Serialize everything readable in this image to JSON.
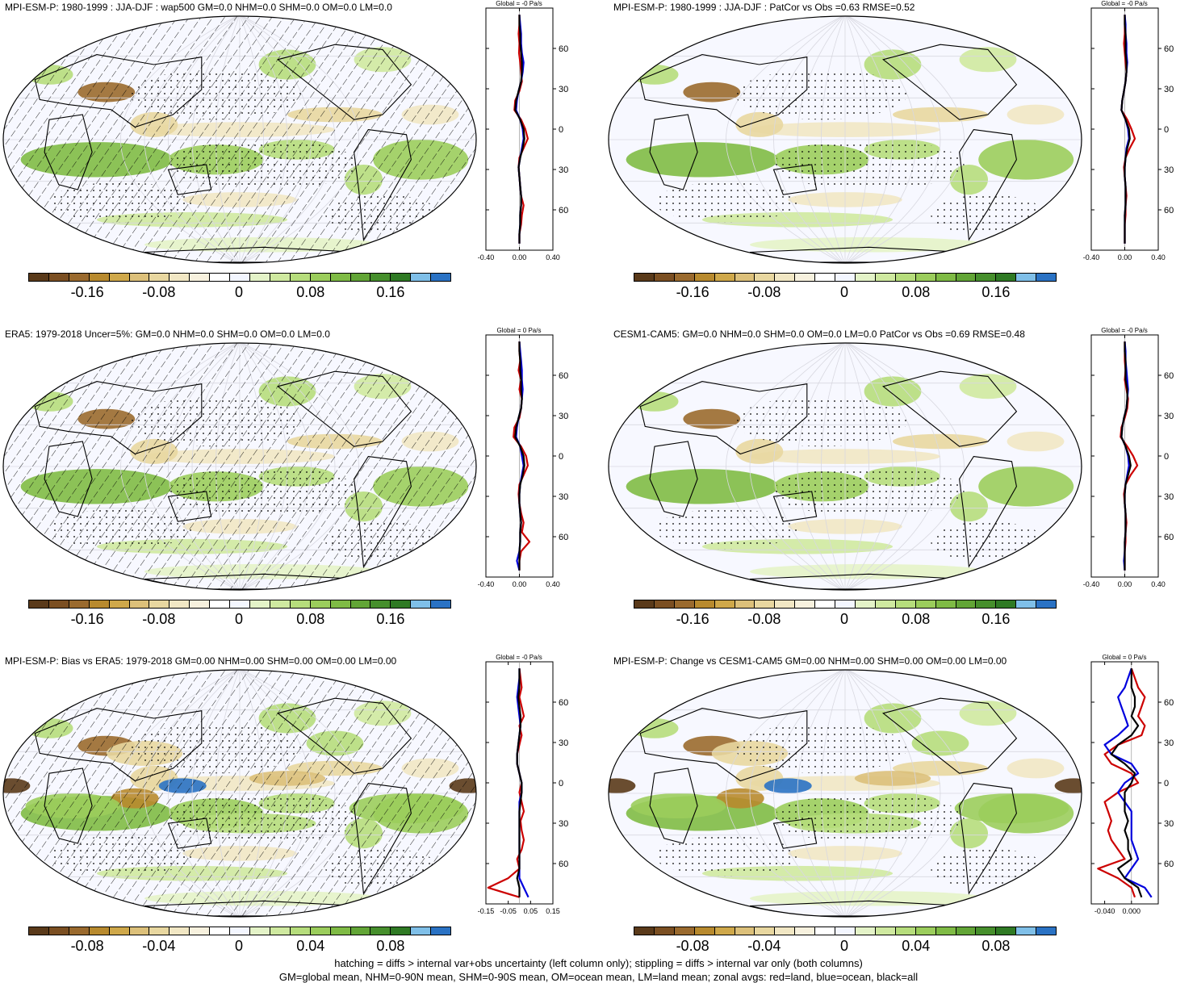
{
  "colors": {
    "palette": [
      "#5a3a1a",
      "#7b4f22",
      "#9a6a2e",
      "#b88a2e",
      "#cfa84a",
      "#dcc07a",
      "#e8d7a0",
      "#f1e7c4",
      "#f7f1de",
      "#ffffff",
      "#f3f6ff",
      "#e4f3c8",
      "#cfe9a0",
      "#b6dd7c",
      "#9bcd5c",
      "#7fbb45",
      "#62a536",
      "#468f2c",
      "#2f7a24",
      "#7fbfe8",
      "#2a72c4"
    ],
    "land": "#cc0000",
    "ocean": "#0000dd",
    "all": "#000000"
  },
  "panels": [
    {
      "title": "MPI-ESM-P: 1980-1999 : JJA-DJF : wap500 GM=0.0 NHM=0.0 SHM=0.0 OM=0.0 LM=0.0",
      "hatch": true,
      "cbar_labels": [
        "-0.16",
        "-0.08",
        "0",
        "0.08",
        "0.16"
      ],
      "zonal": {
        "title": "Global = -0 Pa/s",
        "xticks": [
          "-0.40",
          "0.00",
          "0.40"
        ],
        "xlim": [
          -0.4,
          0.4
        ],
        "lat_labels": [
          "60N",
          "30N",
          "0",
          "30S",
          "60S"
        ],
        "land": [
          0.0,
          0.0,
          -0.01,
          0.0,
          -0.005,
          0.01,
          0.02,
          0.03,
          0.0,
          -0.05,
          -0.06,
          0.02,
          0.07,
          0.1,
          0.05,
          0.0,
          -0.01,
          0.0,
          0.01,
          0.02,
          0.05,
          0.03,
          0.02,
          0.0,
          0.0
        ],
        "ocean": [
          0.0,
          0.01,
          0.02,
          0.02,
          0.03,
          0.05,
          0.04,
          0.02,
          -0.01,
          -0.03,
          -0.04,
          0.01,
          0.04,
          0.05,
          0.03,
          0.01,
          -0.01,
          0.0,
          0.01,
          0.02,
          0.02,
          0.01,
          0.01,
          0.0,
          0.0
        ],
        "all": [
          0.0,
          0.0,
          0.01,
          0.01,
          0.02,
          0.03,
          0.03,
          0.02,
          -0.01,
          -0.04,
          -0.05,
          0.01,
          0.05,
          0.06,
          0.04,
          0.01,
          -0.01,
          0.0,
          0.01,
          0.02,
          0.02,
          0.01,
          0.01,
          0.0,
          0.0
        ]
      }
    },
    {
      "title": "MPI-ESM-P: 1980-1999 : JJA-DJF : PatCor vs Obs =0.63 RMSE=0.52",
      "hatch": false,
      "cbar_labels": [
        "-0.16",
        "-0.08",
        "0",
        "0.08",
        "0.16"
      ],
      "zonal": {
        "title": "Global = -0 Pa/s",
        "xticks": [
          "-0.40",
          "0.00",
          "0.40"
        ],
        "xlim": [
          -0.4,
          0.4
        ],
        "lat_labels": [
          "60N",
          "30N",
          "0",
          "30S",
          "60S"
        ],
        "land": [
          0.0,
          0.0,
          0.0,
          -0.01,
          0.0,
          0.01,
          0.02,
          0.01,
          -0.01,
          -0.03,
          -0.04,
          0.03,
          0.08,
          0.12,
          0.06,
          0.01,
          -0.01,
          0.0,
          0.01,
          0.02,
          0.01,
          0.01,
          0.0,
          0.0,
          0.0
        ],
        "ocean": [
          0.0,
          0.01,
          0.01,
          0.02,
          0.02,
          0.03,
          0.02,
          0.01,
          -0.01,
          -0.03,
          -0.04,
          0.01,
          0.04,
          0.05,
          0.02,
          0.01,
          0.0,
          0.0,
          0.01,
          0.01,
          0.01,
          0.0,
          0.0,
          0.0,
          0.0
        ],
        "all": [
          0.0,
          0.0,
          0.01,
          0.01,
          0.01,
          0.02,
          0.02,
          0.01,
          -0.01,
          -0.03,
          -0.04,
          0.01,
          0.05,
          0.06,
          0.03,
          0.01,
          0.0,
          0.0,
          0.01,
          0.01,
          0.01,
          0.0,
          0.0,
          0.0,
          0.0
        ]
      }
    },
    {
      "title": "ERA5: 1979-2018 Uncer=5%: GM=0.0 NHM=0.0 SHM=0.0 OM=0.0 LM=0.0",
      "hatch": true,
      "cbar_labels": [
        "-0.16",
        "-0.08",
        "0",
        "0.08",
        "0.16"
      ],
      "zonal": {
        "title": "Global = 0 Pa/s",
        "xticks": [
          "-0.40",
          "0.00",
          "0.40"
        ],
        "xlim": [
          -0.4,
          0.4
        ],
        "lat_labels": [
          "60N",
          "30N",
          "0",
          "30S",
          "60S"
        ],
        "land": [
          0.0,
          0.0,
          0.01,
          -0.01,
          0.02,
          0.0,
          0.03,
          0.02,
          0.0,
          -0.06,
          -0.07,
          0.02,
          0.08,
          0.1,
          0.05,
          0.0,
          -0.01,
          0.0,
          0.02,
          0.05,
          0.03,
          0.12,
          0.02,
          0.0,
          0.0
        ],
        "ocean": [
          0.0,
          0.01,
          0.02,
          0.03,
          0.03,
          0.04,
          0.03,
          0.02,
          -0.01,
          -0.03,
          -0.04,
          0.01,
          0.03,
          0.05,
          0.03,
          0.01,
          0.0,
          0.0,
          0.01,
          0.02,
          0.01,
          0.01,
          0.0,
          -0.03,
          0.0
        ],
        "all": [
          0.0,
          0.0,
          0.01,
          0.01,
          0.02,
          0.02,
          0.03,
          0.02,
          -0.01,
          -0.04,
          -0.05,
          0.01,
          0.05,
          0.06,
          0.04,
          0.01,
          0.0,
          0.0,
          0.01,
          0.02,
          0.01,
          0.01,
          0.0,
          0.0,
          0.0
        ]
      }
    },
    {
      "title": "CESM1-CAM5: GM=0.0 NHM=0.0 SHM=0.0 OM=0.0 LM=0.0 PatCor vs Obs =0.69 RMSE=0.48",
      "hatch": false,
      "cbar_labels": [
        "-0.16",
        "-0.08",
        "0",
        "0.08",
        "0.16"
      ],
      "zonal": {
        "title": "Global = -0 Pa/s",
        "xticks": [
          "-0.40",
          "0.00",
          "0.40"
        ],
        "xlim": [
          -0.4,
          0.4
        ],
        "lat_labels": [
          "60N",
          "30N",
          "0",
          "30S",
          "60S"
        ],
        "land": [
          0.0,
          0.0,
          0.0,
          0.01,
          0.0,
          0.02,
          0.04,
          0.03,
          0.0,
          -0.04,
          -0.05,
          0.03,
          0.1,
          0.15,
          0.07,
          0.01,
          -0.01,
          0.0,
          0.01,
          0.02,
          0.01,
          0.01,
          0.0,
          0.0,
          0.0
        ],
        "ocean": [
          0.0,
          0.01,
          0.01,
          0.02,
          0.03,
          0.04,
          0.03,
          0.02,
          -0.01,
          -0.03,
          -0.04,
          0.01,
          0.04,
          0.05,
          0.03,
          0.01,
          0.0,
          0.0,
          0.01,
          0.01,
          0.01,
          0.0,
          0.0,
          -0.01,
          0.0
        ],
        "all": [
          0.0,
          0.0,
          0.01,
          0.01,
          0.01,
          0.03,
          0.03,
          0.02,
          -0.01,
          -0.03,
          -0.04,
          0.01,
          0.05,
          0.07,
          0.04,
          0.01,
          0.0,
          0.0,
          0.01,
          0.01,
          0.01,
          0.0,
          0.0,
          0.0,
          0.0
        ]
      }
    },
    {
      "title": "MPI-ESM-P: Bias vs ERA5: 1979-2018 GM=0.00 NHM=0.00 SHM=0.00 OM=0.00 LM=0.00",
      "hatch": true,
      "cbar_labels": [
        "-0.08",
        "-0.04",
        "0",
        "0.04",
        "0.08"
      ],
      "zonal": {
        "title": "Global = -0 Pa/s",
        "xticks": [
          "-0.15",
          "-0.05",
          "0.05",
          "0.15"
        ],
        "xlim": [
          -0.15,
          0.15
        ],
        "lat_labels": [
          "60N",
          "30N",
          "0",
          "30S",
          "60S"
        ],
        "land": [
          0.0,
          0.005,
          0.01,
          0.0,
          0.01,
          0.02,
          0.0,
          0.01,
          0.0,
          -0.01,
          -0.01,
          0.0,
          0.01,
          0.0,
          0.01,
          0.02,
          0.005,
          0.01,
          0.02,
          0.01,
          -0.01,
          0.0,
          -0.05,
          -0.14,
          0.0
        ],
        "ocean": [
          0.0,
          0.0,
          -0.005,
          -0.01,
          -0.005,
          0.0,
          0.005,
          0.0,
          -0.005,
          -0.01,
          -0.01,
          0.0,
          0.01,
          0.01,
          0.0,
          0.0,
          0.0,
          0.0,
          0.0,
          0.0,
          0.0,
          0.0,
          0.0,
          0.02,
          0.04
        ],
        "all": [
          0.0,
          0.0,
          0.0,
          -0.005,
          0.0,
          0.005,
          0.005,
          0.0,
          -0.005,
          -0.01,
          -0.01,
          0.0,
          0.01,
          0.01,
          0.005,
          0.0,
          0.0,
          0.0,
          0.0,
          0.0,
          0.0,
          0.0,
          -0.01,
          0.0,
          0.0
        ]
      }
    },
    {
      "title": "MPI-ESM-P: Change vs CESM1-CAM5 GM=0.00 NHM=0.00 SHM=0.00 OM=0.00 LM=0.00",
      "hatch": false,
      "cbar_labels": [
        "-0.08",
        "-0.04",
        "0",
        "0.04",
        "0.08"
      ],
      "zonal": {
        "title": "Global = 0 Pa/s",
        "xticks": [
          "-0.040",
          "0.000"
        ],
        "xlim": [
          -0.06,
          0.04
        ],
        "lat_labels": [
          "60N",
          "30N",
          "0",
          "30S",
          "60S"
        ],
        "land": [
          0.0,
          0.005,
          0.01,
          0.02,
          0.015,
          0.01,
          0.02,
          0.015,
          -0.02,
          -0.04,
          -0.03,
          0.0,
          0.01,
          -0.02,
          -0.04,
          -0.035,
          -0.03,
          -0.035,
          -0.03,
          -0.02,
          -0.01,
          -0.05,
          -0.02,
          0.0,
          0.005
        ],
        "ocean": [
          0.0,
          -0.005,
          -0.01,
          -0.02,
          -0.015,
          -0.01,
          -0.005,
          -0.02,
          -0.04,
          -0.03,
          0.0,
          0.01,
          -0.01,
          -0.02,
          -0.01,
          0.0,
          0.0,
          0.0,
          0.0,
          0.005,
          0.01,
          0.0,
          -0.01,
          0.02,
          0.03
        ],
        "all": [
          0.0,
          0.0,
          0.0,
          0.005,
          0.005,
          0.0,
          0.01,
          0.0,
          -0.02,
          -0.03,
          -0.01,
          0.005,
          0.0,
          -0.01,
          -0.01,
          -0.01,
          -0.005,
          -0.01,
          -0.005,
          -0.005,
          0.0,
          -0.02,
          -0.01,
          0.01,
          0.015
        ]
      }
    }
  ],
  "footer": {
    "line1": "hatching = diffs > internal var+obs uncertainty (left column only); stippling = diffs > internal var only (both columns)",
    "line2": "GM=global mean, NHM=0-90N mean, SHM=0-90S mean, OM=ocean mean, LM=land mean; zonal avgs: red=land, blue=ocean, black=all"
  },
  "chart_data": [
    {
      "type": "heatmap",
      "title": "MPI-ESM-P: 1980-1999 : JJA-DJF : wap500 GM=0.0 NHM=0.0 SHM=0.0 OM=0.0 LM=0.0",
      "colorbar_ticks": [
        -0.16,
        -0.08,
        0,
        0.08,
        0.16
      ]
    },
    {
      "type": "heatmap",
      "title": "MPI-ESM-P: 1980-1999 : JJA-DJF : PatCor vs Obs =0.63 RMSE=0.52",
      "colorbar_ticks": [
        -0.16,
        -0.08,
        0,
        0.08,
        0.16
      ]
    },
    {
      "type": "heatmap",
      "title": "ERA5: 1979-2018 Uncer=5%: GM=0.0 NHM=0.0 SHM=0.0 OM=0.0 LM=0.0",
      "colorbar_ticks": [
        -0.16,
        -0.08,
        0,
        0.08,
        0.16
      ]
    },
    {
      "type": "heatmap",
      "title": "CESM1-CAM5: GM=0.0 NHM=0.0 SHM=0.0 OM=0.0 LM=0.0 PatCor vs Obs =0.69 RMSE=0.48",
      "colorbar_ticks": [
        -0.16,
        -0.08,
        0,
        0.08,
        0.16
      ]
    },
    {
      "type": "heatmap",
      "title": "MPI-ESM-P: Bias vs ERA5: 1979-2018 GM=0.00 NHM=0.00 SHM=0.00 OM=0.00 LM=0.00",
      "colorbar_ticks": [
        -0.08,
        -0.04,
        0,
        0.04,
        0.08
      ]
    },
    {
      "type": "heatmap",
      "title": "MPI-ESM-P: Change vs CESM1-CAM5 GM=0.00 NHM=0.00 SHM=0.00 OM=0.00 LM=0.00",
      "colorbar_ticks": [
        -0.08,
        -0.04,
        0,
        0.04,
        0.08
      ]
    },
    {
      "type": "line",
      "title": "Global = -0 Pa/s",
      "ylabels": [
        "60N",
        "30N",
        "0",
        "30S",
        "60S"
      ],
      "xlim": [
        -0.4,
        0.4
      ]
    },
    {
      "type": "line",
      "title": "Global = -0 Pa/s",
      "ylabels": [
        "60N",
        "30N",
        "0",
        "30S",
        "60S"
      ],
      "xlim": [
        -0.4,
        0.4
      ]
    },
    {
      "type": "line",
      "title": "Global = 0 Pa/s",
      "ylabels": [
        "60N",
        "30N",
        "0",
        "30S",
        "60S"
      ],
      "xlim": [
        -0.4,
        0.4
      ]
    },
    {
      "type": "line",
      "title": "Global = -0 Pa/s",
      "ylabels": [
        "60N",
        "30N",
        "0",
        "30S",
        "60S"
      ],
      "xlim": [
        -0.4,
        0.4
      ]
    },
    {
      "type": "line",
      "title": "Global = -0 Pa/s",
      "ylabels": [
        "60N",
        "30N",
        "0",
        "30S",
        "60S"
      ],
      "xlim": [
        -0.15,
        0.15
      ]
    },
    {
      "type": "line",
      "title": "Global = 0 Pa/s",
      "ylabels": [
        "60N",
        "30N",
        "0",
        "30S",
        "60S"
      ],
      "xlim": [
        -0.06,
        0.04
      ]
    }
  ]
}
